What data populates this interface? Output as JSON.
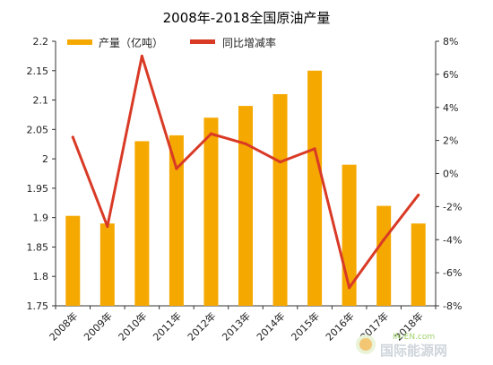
{
  "chart_data": {
    "type": "bar+line",
    "title": "2008年-2018全国原油产量",
    "categories": [
      "2008年",
      "2009年",
      "2010年",
      "2011年",
      "2012年",
      "2013年",
      "2014年",
      "2015年",
      "2016年",
      "2017年",
      "2018年"
    ],
    "series": [
      {
        "name": "产量（亿吨）",
        "type": "bar",
        "axis": "left",
        "color": "#F5A800",
        "values": [
          1.903,
          1.89,
          2.03,
          2.04,
          2.07,
          2.09,
          2.11,
          2.15,
          1.99,
          1.92,
          1.89
        ]
      },
      {
        "name": "同比增减率",
        "type": "line",
        "axis": "right",
        "color": "#D93A26",
        "values": [
          2.2,
          -3.2,
          7.1,
          0.3,
          2.4,
          1.8,
          0.7,
          1.5,
          -6.9,
          -4.0,
          -1.3
        ]
      }
    ],
    "y_left": {
      "ylim": [
        1.75,
        2.2
      ],
      "ticks": [
        "1.75",
        "1.8",
        "1.85",
        "1.9",
        "1.95",
        "2",
        "2.05",
        "2.1",
        "2.15",
        "2.2"
      ],
      "tick_values": [
        1.75,
        1.8,
        1.85,
        1.9,
        1.95,
        2,
        2.05,
        2.1,
        2.15,
        2.2
      ]
    },
    "y_right": {
      "ylim": [
        -8,
        8
      ],
      "ticks": [
        "-8%",
        "-6%",
        "-4%",
        "-2%",
        "0%",
        "2%",
        "4%",
        "6%",
        "8%"
      ],
      "tick_values": [
        -8,
        -6,
        -4,
        -2,
        0,
        2,
        4,
        6,
        8
      ]
    },
    "grid": false,
    "legend_position": "top"
  },
  "watermark": {
    "main": "国际能源网",
    "small": "IN-EN.com"
  }
}
